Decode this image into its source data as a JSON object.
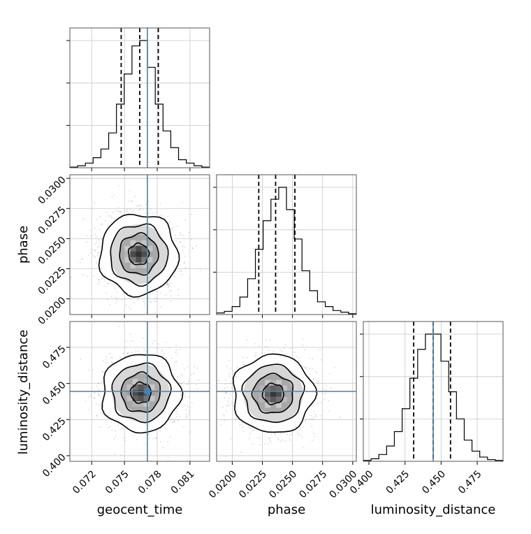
{
  "chart_data": {
    "type": "corner",
    "parameters": [
      "geocent_time",
      "phase",
      "luminosity_distance"
    ],
    "truths": {
      "geocent_time": 0.0771,
      "phase": null,
      "luminosity_distance": 0.4445
    },
    "colors": {
      "truth": "#4682b4",
      "hist": "#000000",
      "grid": "#c8c8c8",
      "points": "#8c8c8c"
    },
    "grid": true,
    "marginals": [
      {
        "param": "geocent_time",
        "range": [
          0.07,
          0.0828
        ],
        "quantiles": [
          0.0747,
          0.0764,
          0.0781
        ],
        "counts": [
          1,
          3,
          7,
          15,
          28,
          52,
          95,
          140,
          182,
          190,
          150,
          95,
          55,
          30,
          12,
          7,
          3,
          1
        ]
      },
      {
        "param": "phase",
        "range": [
          0.0187,
          0.0303
        ],
        "quantiles": [
          0.0222,
          0.0236,
          0.0252
        ],
        "counts": [
          2,
          4,
          10,
          22,
          45,
          82,
          118,
          145,
          160,
          132,
          95,
          55,
          30,
          16,
          10,
          5,
          3,
          1
        ]
      },
      {
        "param": "luminosity_distance",
        "range": [
          0.3961,
          0.4929
        ],
        "quantiles": [
          0.431,
          0.4445,
          0.4565
        ],
        "counts": [
          1,
          3,
          8,
          18,
          35,
          62,
          98,
          132,
          150,
          150,
          118,
          82,
          50,
          25,
          12,
          5,
          2,
          1
        ]
      }
    ],
    "joint": [
      {
        "x": "geocent_time",
        "y": "phase",
        "center": [
          0.0763,
          0.0237
        ],
        "sigma": [
          0.0017,
          0.0016
        ]
      },
      {
        "x": "geocent_time",
        "y": "luminosity_distance",
        "center": [
          0.0765,
          0.4435
        ],
        "sigma": [
          0.0017,
          0.0129
        ]
      },
      {
        "x": "phase",
        "y": "luminosity_distance",
        "center": [
          0.0234,
          0.4428
        ],
        "sigma": [
          0.0016,
          0.0129
        ]
      }
    ],
    "ticks": {
      "geocent_time": [
        "0.072",
        "0.075",
        "0.078",
        "0.081"
      ],
      "phase": [
        "0.0200",
        "0.0225",
        "0.0250",
        "0.0275",
        "0.0300"
      ],
      "luminosity_distance": [
        "0.400",
        "0.425",
        "0.450",
        "0.475"
      ]
    },
    "xlabels": [
      "geocent_time",
      "phase",
      "luminosity_distance"
    ],
    "ylabels": [
      "phase",
      "luminosity_distance"
    ]
  }
}
